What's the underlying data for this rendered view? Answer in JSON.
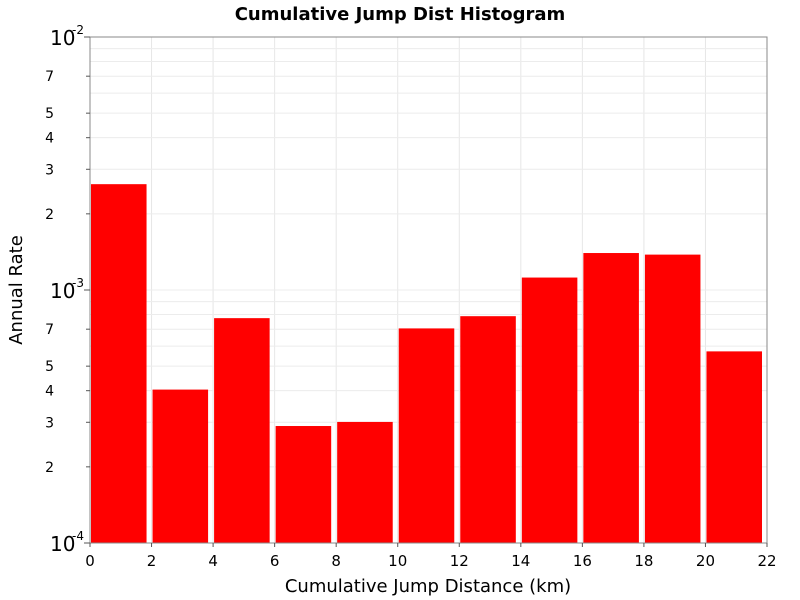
{
  "chart_data": {
    "type": "bar",
    "title": "Cumulative Jump Dist Histogram",
    "xlabel": "Cumulative Jump Distance (km)",
    "ylabel": "Annual Rate",
    "x_scale": "linear",
    "y_scale": "log",
    "xlim": [
      0,
      22
    ],
    "ylim": [
      0.0001,
      0.01
    ],
    "x_ticks": [
      "0",
      "2",
      "4",
      "6",
      "8",
      "10",
      "12",
      "14",
      "16",
      "18",
      "20",
      "22"
    ],
    "y_major_ticks": [
      {
        "base": "10",
        "exp": "-4",
        "value": 0.0001
      },
      {
        "base": "10",
        "exp": "-3",
        "value": 0.001
      },
      {
        "base": "10",
        "exp": "-2",
        "value": 0.01
      }
    ],
    "y_minor_ticks": [
      {
        "label": "2",
        "value": 0.0002
      },
      {
        "label": "3",
        "value": 0.0003
      },
      {
        "label": "4",
        "value": 0.0004
      },
      {
        "label": "5",
        "value": 0.0005
      },
      {
        "label": "7",
        "value": 0.0007
      },
      {
        "label": "2",
        "value": 0.002
      },
      {
        "label": "3",
        "value": 0.003
      },
      {
        "label": "4",
        "value": 0.004
      },
      {
        "label": "5",
        "value": 0.005
      },
      {
        "label": "7",
        "value": 0.007
      }
    ],
    "grid": true,
    "bars": [
      {
        "x_start": 0,
        "x_end": 2,
        "value": 0.00262
      },
      {
        "x_start": 2,
        "x_end": 4,
        "value": 0.000404
      },
      {
        "x_start": 4,
        "x_end": 6,
        "value": 0.000774
      },
      {
        "x_start": 6,
        "x_end": 8,
        "value": 0.00029
      },
      {
        "x_start": 8,
        "x_end": 10,
        "value": 0.000301
      },
      {
        "x_start": 10,
        "x_end": 12,
        "value": 0.000705
      },
      {
        "x_start": 12,
        "x_end": 14,
        "value": 0.000788
      },
      {
        "x_start": 14,
        "x_end": 16,
        "value": 0.00112
      },
      {
        "x_start": 16,
        "x_end": 18,
        "value": 0.0014
      },
      {
        "x_start": 18,
        "x_end": 20,
        "value": 0.00138
      },
      {
        "x_start": 20,
        "x_end": 22,
        "value": 0.000572
      }
    ],
    "bar_color": "#ff0000"
  }
}
